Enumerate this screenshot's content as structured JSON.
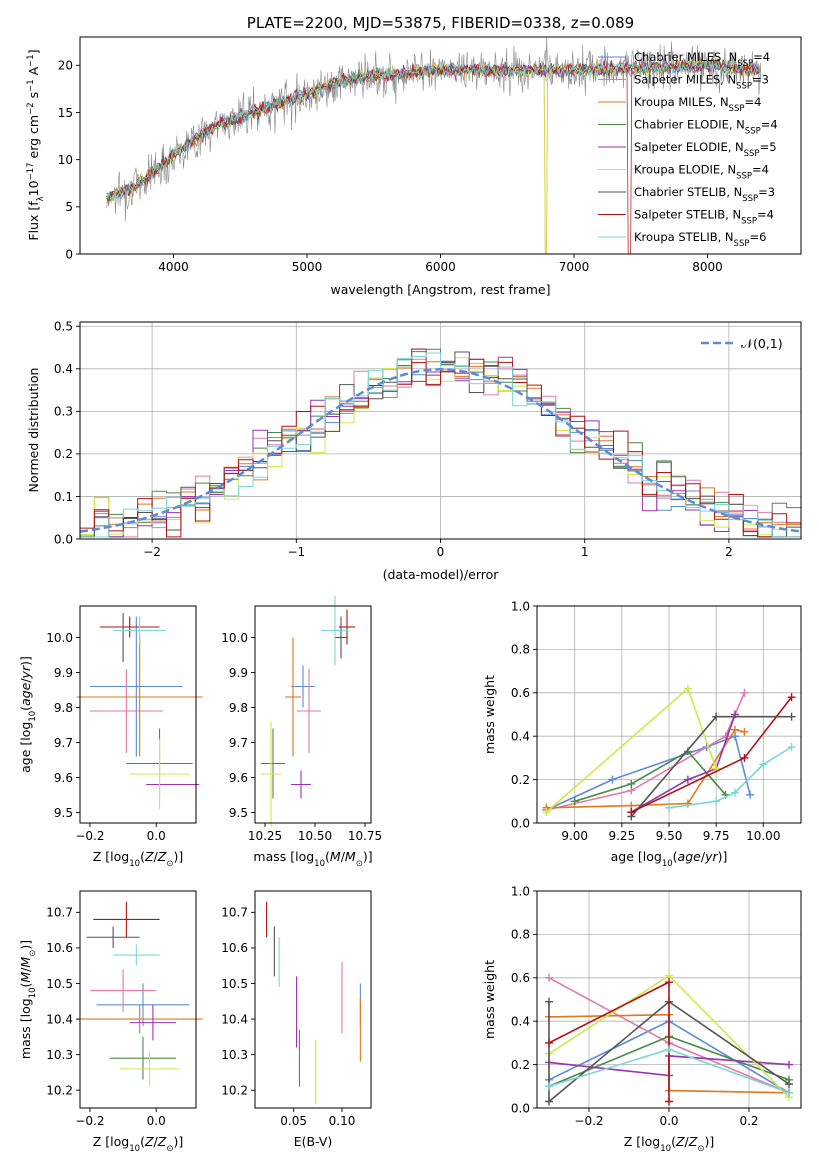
{
  "colors": {
    "c_miles": "#5b8bd9",
    "s_miles": "#e07aa8",
    "k_miles": "#e0781e",
    "c_elodie": "#4a8a4a",
    "s_elodie": "#9a32b4",
    "k_elodie": "#d2e84a",
    "c_stelib": "#555555",
    "s_stelib": "#b01414",
    "k_stelib": "#7cd6d8"
  },
  "chart_data": [
    {
      "type": "line",
      "title": "PLATE=2200, MJD=53875, FIBERID=0338, z=0.089",
      "xlabel": "wavelength [Angstrom, rest frame]",
      "ylabel": "Flux [fλ10⁻¹⁷ erg cm⁻² s⁻¹ A⁻¹]",
      "xlim": [
        3300,
        8700
      ],
      "ylim": [
        0,
        23
      ],
      "xticks": [
        4000,
        5000,
        6000,
        7000,
        8000
      ],
      "yticks": [
        0,
        5,
        10,
        15,
        20
      ],
      "legend_position": "upper right",
      "spectrum_anchors": {
        "x": [
          3500,
          3700,
          4000,
          4300,
          4600,
          5000,
          5300,
          5600,
          6000,
          6500,
          7000,
          7500,
          8000,
          8400
        ],
        "y": [
          6,
          7,
          10.5,
          13.5,
          15,
          17,
          18.5,
          19,
          19.5,
          19.5,
          19.5,
          19.8,
          20,
          19.5
        ]
      },
      "series": [
        {
          "name": "Chabrier MILES, N_SSP=4",
          "key": "c_miles"
        },
        {
          "name": "Salpeter MILES, N_SSP=3",
          "key": "s_miles"
        },
        {
          "name": "Kroupa MILES, N_SSP=4",
          "key": "k_miles"
        },
        {
          "name": "Chabrier ELODIE, N_SSP=4",
          "key": "c_elodie"
        },
        {
          "name": "Salpeter ELODIE, N_SSP=5",
          "key": "s_elodie"
        },
        {
          "name": "Kroupa ELODIE, N_SSP=4",
          "key": "k_elodie"
        },
        {
          "name": "Chabrier STELIB, N_SSP=3",
          "key": "c_stelib"
        },
        {
          "name": "Salpeter STELIB, N_SSP=4",
          "key": "s_stelib"
        },
        {
          "name": "Kroupa STELIB, N_SSP=6",
          "key": "k_stelib"
        }
      ]
    },
    {
      "type": "area",
      "xlabel": "(data-model)/error",
      "ylabel": "Normed distribution",
      "xlim": [
        -2.5,
        2.5
      ],
      "ylim": [
        0,
        0.51
      ],
      "xticks": [
        -2,
        -1,
        0,
        1,
        2
      ],
      "yticks": [
        0.0,
        0.1,
        0.2,
        0.3,
        0.4,
        0.5
      ],
      "grid": true,
      "legend": {
        "name": "𝒩(0,1)",
        "position": "upper right"
      },
      "histogram_bins": {
        "start": -2.5,
        "width": 0.1,
        "count": 50
      },
      "reference_curve": "normal(0,1)"
    },
    {
      "type": "scatter",
      "xlabel": "Z [log₁₀(Z/Z⊙)]",
      "ylabel": "age  [log₁₀(age/yr)]",
      "xlim": [
        -0.23,
        0.12
      ],
      "ylim": [
        9.47,
        10.09
      ],
      "xticks": [
        -0.2,
        0.0
      ],
      "yticks": [
        9.5,
        9.6,
        9.7,
        9.8,
        9.9,
        10.0
      ],
      "points": [
        {
          "key": "c_miles",
          "x": -0.06,
          "xerr": 0.14,
          "y": 9.86,
          "yerr": 0.2
        },
        {
          "key": "s_miles",
          "x": -0.09,
          "xerr": 0.11,
          "y": 9.79,
          "yerr": 0.12
        },
        {
          "key": "k_miles",
          "x": -0.05,
          "xerr": 0.19,
          "y": 9.83,
          "yerr": 0.17
        },
        {
          "key": "c_elodie",
          "x": 0.01,
          "xerr": 0.1,
          "y": 9.64,
          "yerr": 0.1
        },
        {
          "key": "s_elodie",
          "x": -0.08,
          "xerr": 0.0,
          "y": 9.58,
          "yerr": 0.0
        },
        {
          "key": "s_elodie",
          "x": 0.05,
          "xerr": 0.08,
          "y": 9.58,
          "yerr": 0.0
        },
        {
          "key": "k_elodie",
          "x": 0.01,
          "xerr": 0.09,
          "y": 9.61,
          "yerr": 0.1
        },
        {
          "key": "c_stelib",
          "x": -0.1,
          "xerr": 0.0,
          "y": 10.0,
          "yerr": 0.07
        },
        {
          "key": "s_stelib",
          "x": -0.08,
          "xerr": 0.09,
          "y": 10.03,
          "yerr": 0.03
        },
        {
          "key": "k_stelib",
          "x": -0.05,
          "xerr": 0.08,
          "y": 10.02,
          "yerr": 0.04
        }
      ]
    },
    {
      "type": "scatter",
      "xlabel": "mass [log₁₀(M/M⊙)]",
      "ylabel": "",
      "xlim": [
        10.2,
        10.78
      ],
      "ylim": [
        9.47,
        10.09
      ],
      "xticks": [
        10.25,
        10.5,
        10.75
      ],
      "yticks": [
        9.5,
        9.6,
        9.7,
        9.8,
        9.9,
        10.0
      ],
      "points": [
        {
          "key": "c_miles",
          "x": 10.44,
          "xerr": 0.06,
          "y": 9.86,
          "yerr": 0.06
        },
        {
          "key": "s_miles",
          "x": 10.47,
          "xerr": 0.06,
          "y": 9.79,
          "yerr": 0.12
        },
        {
          "key": "k_miles",
          "x": 10.39,
          "xerr": 0.04,
          "y": 9.83,
          "yerr": 0.17
        },
        {
          "key": "c_elodie",
          "x": 10.29,
          "xerr": 0.06,
          "y": 9.64,
          "yerr": 0.1
        },
        {
          "key": "s_elodie",
          "x": 10.43,
          "xerr": 0.05,
          "y": 9.58,
          "yerr": 0.04
        },
        {
          "key": "k_elodie",
          "x": 10.28,
          "xerr": 0.05,
          "y": 9.61,
          "yerr": 0.15
        },
        {
          "key": "c_stelib",
          "x": 10.63,
          "xerr": 0.03,
          "y": 10.0,
          "yerr": 0.06
        },
        {
          "key": "s_stelib",
          "x": 10.66,
          "xerr": 0.04,
          "y": 10.03,
          "yerr": 0.05
        },
        {
          "key": "k_stelib",
          "x": 10.6,
          "xerr": 0.07,
          "y": 10.02,
          "yerr": 0.1
        }
      ]
    },
    {
      "type": "line",
      "xlabel": "age  [log₁₀(age/yr)]",
      "ylabel": "mass weight",
      "xlim": [
        8.8,
        10.2
      ],
      "ylim": [
        0,
        1
      ],
      "xticks": [
        9.0,
        9.25,
        9.5,
        9.75,
        10.0
      ],
      "yticks": [
        0.0,
        0.2,
        0.4,
        0.6,
        0.8,
        1.0
      ],
      "grid": true,
      "series": [
        {
          "key": "c_miles",
          "x": [
            8.85,
            9.2,
            9.7,
            9.85,
            9.93
          ],
          "y": [
            0.06,
            0.2,
            0.35,
            0.4,
            0.13
          ]
        },
        {
          "key": "s_miles",
          "x": [
            8.85,
            9.3,
            9.8,
            9.9
          ],
          "y": [
            0.06,
            0.15,
            0.4,
            0.6
          ]
        },
        {
          "key": "k_miles",
          "x": [
            8.85,
            9.3,
            9.6,
            9.85,
            9.9
          ],
          "y": [
            0.07,
            0.08,
            0.09,
            0.43,
            0.42
          ]
        },
        {
          "key": "c_elodie",
          "x": [
            9.0,
            9.3,
            9.6,
            9.8
          ],
          "y": [
            0.1,
            0.18,
            0.33,
            0.13
          ]
        },
        {
          "key": "s_elodie",
          "x": [
            9.3,
            9.6,
            9.75,
            9.85
          ],
          "y": [
            0.05,
            0.2,
            0.25,
            0.5
          ]
        },
        {
          "key": "k_elodie",
          "x": [
            8.85,
            9.6,
            9.75
          ],
          "y": [
            0.05,
            0.62,
            0.25
          ]
        },
        {
          "key": "c_stelib",
          "x": [
            9.3,
            9.75,
            10.15
          ],
          "y": [
            0.03,
            0.49,
            0.49
          ]
        },
        {
          "key": "s_stelib",
          "x": [
            9.3,
            9.9,
            10.15
          ],
          "y": [
            0.05,
            0.3,
            0.58
          ]
        },
        {
          "key": "k_stelib",
          "x": [
            9.5,
            9.75,
            9.85,
            10.0,
            10.15
          ],
          "y": [
            0.07,
            0.1,
            0.14,
            0.27,
            0.35
          ]
        }
      ]
    },
    {
      "type": "scatter",
      "xlabel": "Z [log₁₀(Z/Z⊙)]",
      "ylabel": "mass [log₁₀(M/M⊙)]",
      "xlim": [
        -0.23,
        0.12
      ],
      "ylim": [
        10.15,
        10.76
      ],
      "xticks": [
        -0.2,
        0.0
      ],
      "yticks": [
        10.2,
        10.3,
        10.4,
        10.5,
        10.6,
        10.7
      ],
      "points": [
        {
          "key": "c_miles",
          "x": -0.04,
          "xerr": 0.14,
          "y": 10.44,
          "yerr": 0.06
        },
        {
          "key": "s_miles",
          "x": -0.1,
          "xerr": 0.1,
          "y": 10.48,
          "yerr": 0.06
        },
        {
          "key": "k_miles",
          "x": -0.05,
          "xerr": 0.19,
          "y": 10.4,
          "yerr": 0.04
        },
        {
          "key": "c_elodie",
          "x": -0.04,
          "xerr": 0.1,
          "y": 10.29,
          "yerr": 0.06
        },
        {
          "key": "s_elodie",
          "x": -0.01,
          "xerr": 0.07,
          "y": 10.39,
          "yerr": 0.05
        },
        {
          "key": "k_elodie",
          "x": -0.02,
          "xerr": 0.09,
          "y": 10.26,
          "yerr": 0.05
        },
        {
          "key": "c_stelib",
          "x": -0.13,
          "xerr": 0.08,
          "y": 10.63,
          "yerr": 0.03
        },
        {
          "key": "s_stelib",
          "x": -0.09,
          "xerr": 0.1,
          "y": 10.68,
          "yerr": 0.05
        },
        {
          "key": "k_stelib",
          "x": -0.06,
          "xerr": 0.07,
          "y": 10.58,
          "yerr": 0.03
        }
      ]
    },
    {
      "type": "scatter",
      "xlabel": "E(B-V)",
      "ylabel": "",
      "xlim": [
        0.01,
        0.13
      ],
      "ylim": [
        10.15,
        10.76
      ],
      "xticks": [
        0.05,
        0.1
      ],
      "yticks": [
        10.2,
        10.3,
        10.4,
        10.5,
        10.6,
        10.7
      ],
      "points": [
        {
          "key": "c_miles",
          "x": 0.119,
          "y": 10.44,
          "yerr": 0.06
        },
        {
          "key": "s_miles",
          "x": 0.1,
          "y": 10.46,
          "yerr": 0.1
        },
        {
          "key": "k_miles",
          "x": 0.119,
          "y": 10.37,
          "yerr": 0.09
        },
        {
          "key": "c_elodie",
          "x": 0.056,
          "y": 10.29,
          "yerr": 0.08
        },
        {
          "key": "s_elodie",
          "x": 0.053,
          "y": 10.42,
          "yerr": 0.1
        },
        {
          "key": "k_elodie",
          "x": 0.073,
          "y": 10.25,
          "yerr": 0.09
        },
        {
          "key": "c_stelib",
          "x": 0.03,
          "y": 10.59,
          "yerr": 0.07
        },
        {
          "key": "s_stelib",
          "x": 0.022,
          "y": 10.68,
          "yerr": 0.05
        },
        {
          "key": "k_stelib",
          "x": 0.035,
          "y": 10.56,
          "yerr": 0.07
        }
      ]
    },
    {
      "type": "line",
      "xlabel": "Z [log₁₀(Z/Z⊙)]",
      "ylabel": "mass weight",
      "xlim": [
        -0.33,
        0.33
      ],
      "ylim": [
        0,
        1
      ],
      "xticks": [
        -0.2,
        0.0,
        0.2
      ],
      "yticks": [
        0.0,
        0.2,
        0.4,
        0.6,
        0.8,
        1.0
      ],
      "grid": true,
      "series": [
        {
          "key": "c_miles",
          "x": [
            -0.3,
            0.0,
            0.3
          ],
          "y": [
            0.13,
            0.4,
            0.07
          ]
        },
        {
          "key": "s_miles",
          "x": [
            -0.3,
            0.0,
            0.3
          ],
          "y": [
            0.6,
            0.3,
            0.07
          ]
        },
        {
          "key": "k_miles",
          "x": [
            -0.3,
            0.0,
            0.0,
            0.3
          ],
          "y": [
            0.42,
            0.43,
            0.08,
            0.07
          ]
        },
        {
          "key": "c_elodie",
          "x": [
            -0.3,
            0.0,
            0.3
          ],
          "y": [
            0.1,
            0.33,
            0.13
          ]
        },
        {
          "key": "s_elodie",
          "x": [
            -0.3,
            0.0,
            0.0,
            0.3
          ],
          "y": [
            0.21,
            0.15,
            0.24,
            0.2
          ]
        },
        {
          "key": "k_elodie",
          "x": [
            -0.3,
            0.0,
            0.3
          ],
          "y": [
            0.25,
            0.61,
            0.05
          ]
        },
        {
          "key": "c_stelib",
          "x": [
            -0.3,
            -0.3,
            0.0,
            0.3
          ],
          "y": [
            0.49,
            0.03,
            0.49,
            0.11
          ]
        },
        {
          "key": "s_stelib",
          "x": [
            -0.3,
            0.0,
            0.0
          ],
          "y": [
            0.3,
            0.58,
            0.03
          ]
        },
        {
          "key": "k_stelib",
          "x": [
            -0.3,
            0.0,
            0.3
          ],
          "y": [
            0.1,
            0.27,
            0.07
          ]
        }
      ]
    }
  ]
}
